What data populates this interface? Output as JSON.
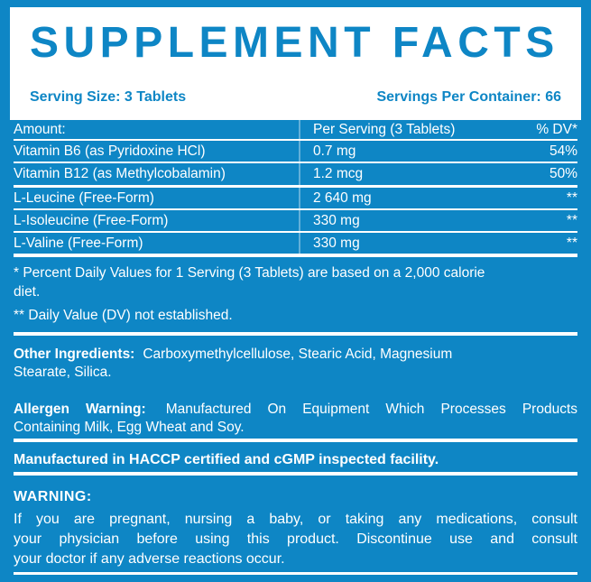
{
  "colors": {
    "blue": "#0e86c5",
    "white": "#ffffff"
  },
  "header": {
    "title": "SUPPLEMENT FACTS",
    "serving_size": "Serving Size: 3 Tablets",
    "servings_per_container": "Servings Per Container: 66"
  },
  "table": {
    "columns": [
      "Amount:",
      "Per Serving (3 Tablets)",
      "% DV*"
    ],
    "rows": [
      {
        "name": "Vitamin B6 (as Pyridoxine HCl)",
        "amount": "0.7 mg",
        "dv": "54%"
      },
      {
        "name": "Vitamin B12 (as Methylcobalamin)",
        "amount": "1.2 mcg",
        "dv": "50%"
      },
      {
        "name": "L-Leucine (Free-Form)",
        "amount": "2 640 mg",
        "dv": "**"
      },
      {
        "name": "L-Isoleucine (Free-Form)",
        "amount": "330 mg",
        "dv": "**"
      },
      {
        "name": "L-Valine (Free-Form)",
        "amount": "330 mg",
        "dv": "**"
      }
    ]
  },
  "footnotes": {
    "daily_value_lines": [
      "* Percent Daily Values for 1 Serving (3 Tablets) are based on a 2,000 calorie",
      "diet."
    ],
    "not_established": "** Daily Value (DV) not established."
  },
  "other_ingredients": {
    "label": "Other Ingredients:",
    "lines": [
      "Carboxymethylcellulose, Stearic Acid, Magnesium",
      "Stearate, Silica."
    ]
  },
  "allergen": {
    "label": "Allergen Warning:",
    "lines": [
      "Manufactured On Equipment Which Processes Products",
      "Containing Milk, Egg Wheat and Soy."
    ]
  },
  "facility": "Manufactured in HACCP certified and cGMP inspected facility.",
  "warning": {
    "label": "WARNING:",
    "lines": [
      "If you are pregnant, nursing a baby, or taking any medications, consult",
      "your physician before using this product. Discontinue use and consult",
      "your doctor if any adverse reactions occur."
    ]
  }
}
